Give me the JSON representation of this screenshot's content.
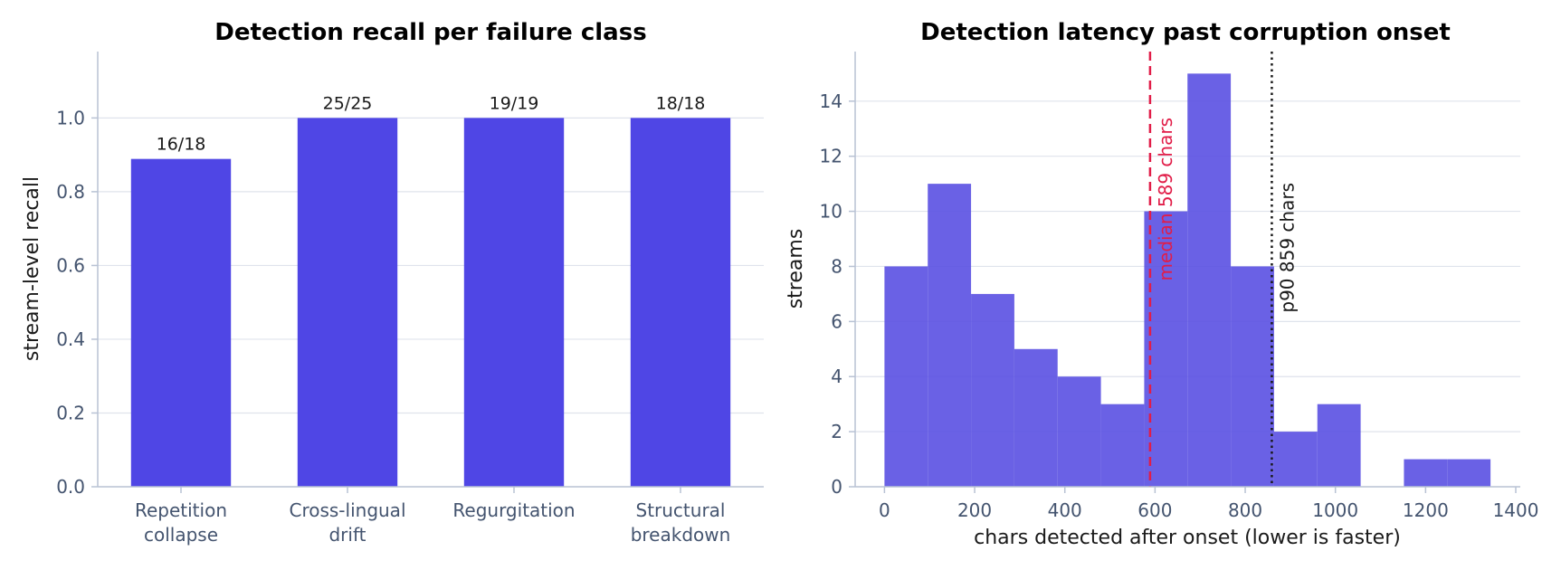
{
  "chart_data": [
    {
      "type": "bar",
      "title": "Detection recall per failure class",
      "xlabel": "",
      "ylabel": "stream-level recall",
      "categories": [
        [
          "Repetition",
          "collapse"
        ],
        [
          "Cross-lingual",
          "drift"
        ],
        [
          "Regurgitation"
        ],
        [
          "Structural",
          "breakdown"
        ]
      ],
      "values": [
        0.8889,
        1.0,
        1.0,
        1.0
      ],
      "value_labels": [
        "16/18",
        "25/25",
        "19/19",
        "18/18"
      ],
      "ylim": [
        0,
        1.18
      ],
      "yticks": [
        "0.0",
        "0.2",
        "0.4",
        "0.6",
        "0.8",
        "1.0"
      ],
      "grid": true,
      "color": "#4f46e5"
    },
    {
      "type": "histogram",
      "title": "Detection latency past corruption onset",
      "xlabel": "chars detected after onset (lower is faster)",
      "ylabel": "streams",
      "xlim": [
        -65,
        1410
      ],
      "ylim": [
        0,
        15.8
      ],
      "xticks": [
        "0",
        "200",
        "400",
        "600",
        "800",
        "1000",
        "1200",
        "1400"
      ],
      "yticks": [
        "0",
        "2",
        "4",
        "6",
        "8",
        "10",
        "12",
        "14"
      ],
      "bins": [
        {
          "x0": 0,
          "x1": 96,
          "count": 8
        },
        {
          "x0": 96,
          "x1": 192,
          "count": 11
        },
        {
          "x0": 192,
          "x1": 288,
          "count": 7
        },
        {
          "x0": 288,
          "x1": 384,
          "count": 5
        },
        {
          "x0": 384,
          "x1": 480,
          "count": 4
        },
        {
          "x0": 480,
          "x1": 576,
          "count": 3
        },
        {
          "x0": 576,
          "x1": 672,
          "count": 10
        },
        {
          "x0": 672,
          "x1": 768,
          "count": 15
        },
        {
          "x0": 768,
          "x1": 864,
          "count": 8
        },
        {
          "x0": 864,
          "x1": 960,
          "count": 2
        },
        {
          "x0": 960,
          "x1": 1056,
          "count": 3
        },
        {
          "x0": 1056,
          "x1": 1152,
          "count": 0
        },
        {
          "x0": 1152,
          "x1": 1248,
          "count": 1
        },
        {
          "x0": 1248,
          "x1": 1344,
          "count": 1
        }
      ],
      "annotations": [
        {
          "label": "median 589 chars",
          "x": 589,
          "style": "dashed",
          "color": "#e11d48"
        },
        {
          "label": "p90 859 chars",
          "x": 859,
          "style": "dotted",
          "color": "#1a1a1a"
        }
      ],
      "grid": true,
      "color": "#5a50e2"
    }
  ]
}
